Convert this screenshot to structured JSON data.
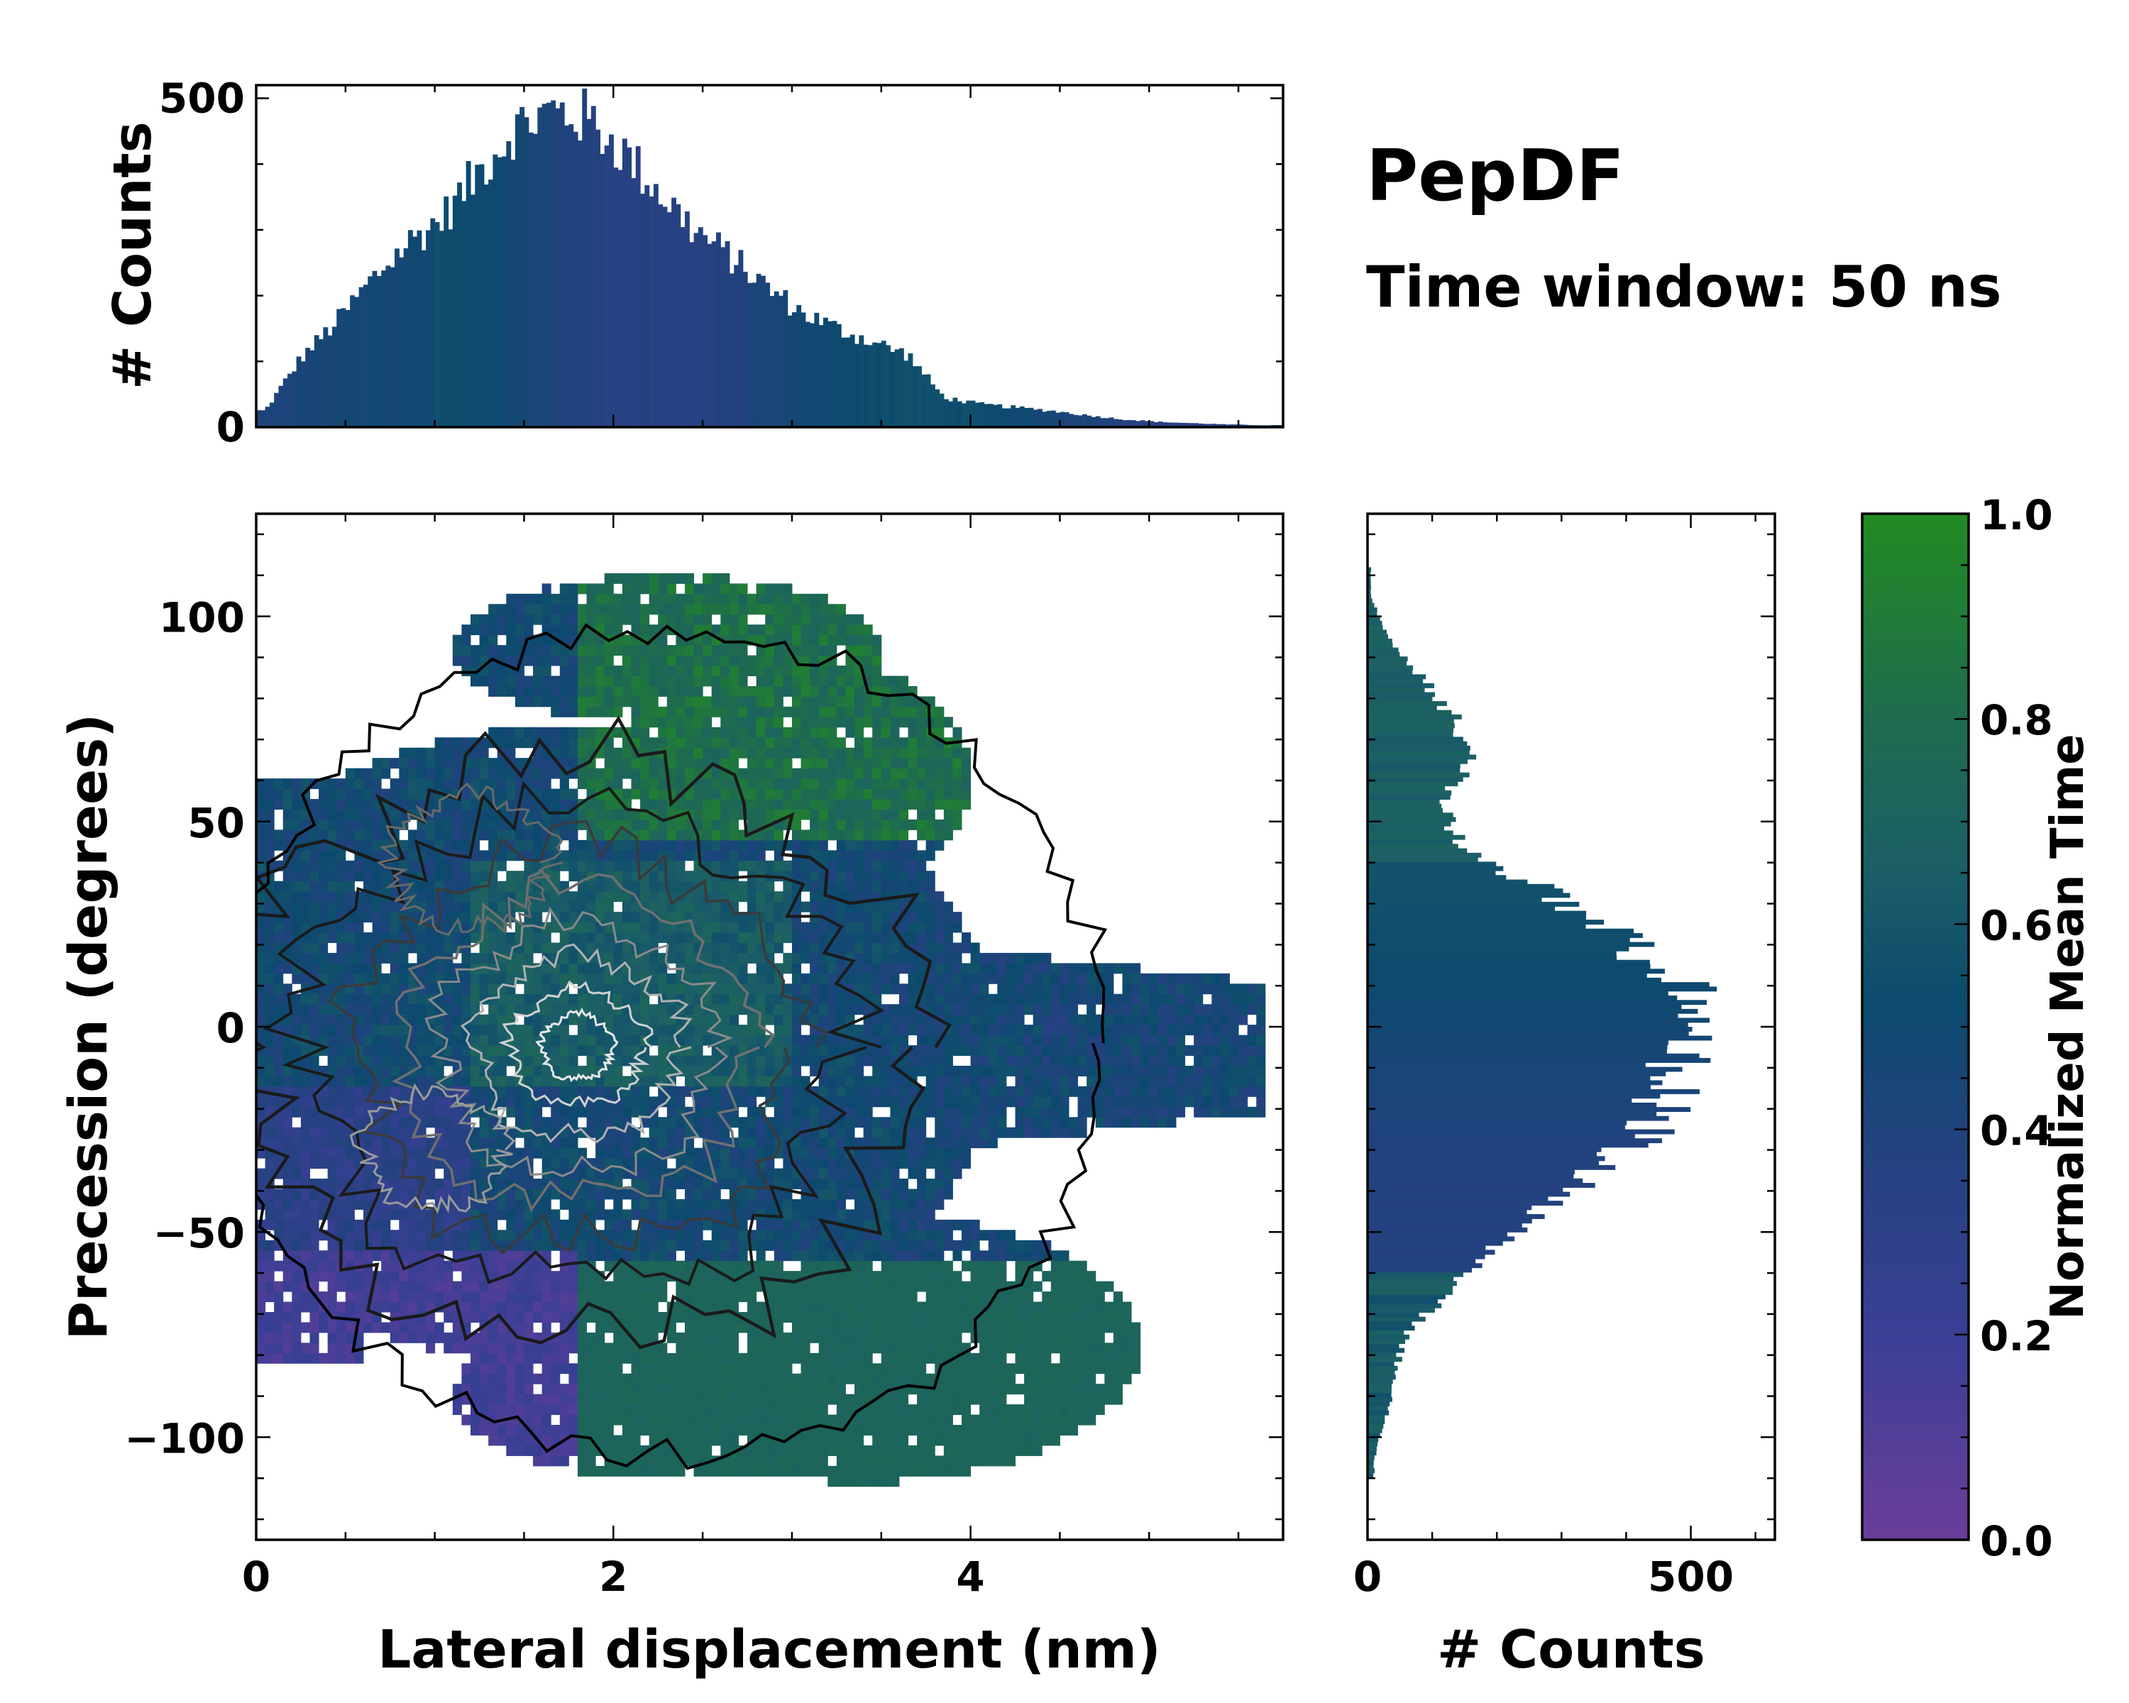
{
  "title": "PepDF",
  "subtitle": "Time window: 50 ns",
  "colors": {
    "cmap": [
      "#6a3d9a",
      "#3a3f95",
      "#23427f",
      "#0c4a6e",
      "#1c5f66",
      "#1e6b4e",
      "#228b22"
    ],
    "contour_dark": "#1a1a1a",
    "contour_mid": "#707070",
    "contour_light": "#e8e8e8"
  },
  "chart_data": [
    {
      "id": "joint",
      "type": "heatmap",
      "xlabel": "Lateral displacement (nm)",
      "ylabel": "Precession (degrees)",
      "xlim": [
        0,
        5.75
      ],
      "ylim": [
        -125,
        125
      ],
      "xticks": [
        0,
        2,
        4
      ],
      "xtick_labels": [
        "0",
        "2",
        "4"
      ],
      "yticks": [
        100,
        50,
        0,
        -50,
        -100
      ],
      "ytick_labels": [
        "100",
        "50",
        "0",
        "−50",
        "−100"
      ],
      "density_center": {
        "x": 1.8,
        "y": -5
      },
      "contours": "density contour lines overlaid (dark outer to light inner)"
    },
    {
      "id": "top_marginal",
      "type": "bar",
      "ylabel": "# Counts",
      "ylim": [
        0,
        520
      ],
      "yticks": [
        0,
        500
      ],
      "ytick_labels": [
        "0",
        "500"
      ],
      "x": [
        0.05,
        0.25,
        0.45,
        0.65,
        0.85,
        1.05,
        1.25,
        1.45,
        1.65,
        1.85,
        2.05,
        2.25,
        2.45,
        2.65,
        2.85,
        3.05,
        3.25,
        3.45,
        3.65,
        3.85,
        4.05,
        4.25,
        4.45,
        4.65,
        4.85,
        5.05,
        5.25,
        5.45,
        5.65
      ],
      "values": [
        25,
        105,
        160,
        225,
        280,
        320,
        390,
        455,
        480,
        470,
        420,
        360,
        300,
        260,
        215,
        175,
        150,
        130,
        110,
        45,
        35,
        30,
        25,
        18,
        12,
        8,
        6,
        4,
        3
      ]
    },
    {
      "id": "right_marginal",
      "type": "bar",
      "orientation": "horizontal",
      "xlabel": "# Counts",
      "xlim": [
        0,
        630
      ],
      "xticks": [
        0,
        500
      ],
      "xtick_labels": [
        "0",
        "500"
      ],
      "y": [
        105,
        95,
        85,
        75,
        65,
        55,
        45,
        35,
        25,
        15,
        5,
        -5,
        -15,
        -25,
        -35,
        -45,
        -55,
        -65,
        -75,
        -85,
        -95,
        -105
      ],
      "values": [
        5,
        30,
        85,
        135,
        160,
        115,
        140,
        250,
        360,
        450,
        510,
        500,
        470,
        450,
        360,
        270,
        190,
        120,
        60,
        40,
        30,
        10
      ]
    },
    {
      "id": "colorbar",
      "type": "heatmap",
      "label": "Normalized Mean Time",
      "range": [
        0,
        1
      ],
      "ticks": [
        0.0,
        0.2,
        0.4,
        0.6,
        0.8,
        1.0
      ],
      "tick_labels": [
        "0.0",
        "0.2",
        "0.4",
        "0.6",
        "0.8",
        "1.0"
      ]
    }
  ]
}
